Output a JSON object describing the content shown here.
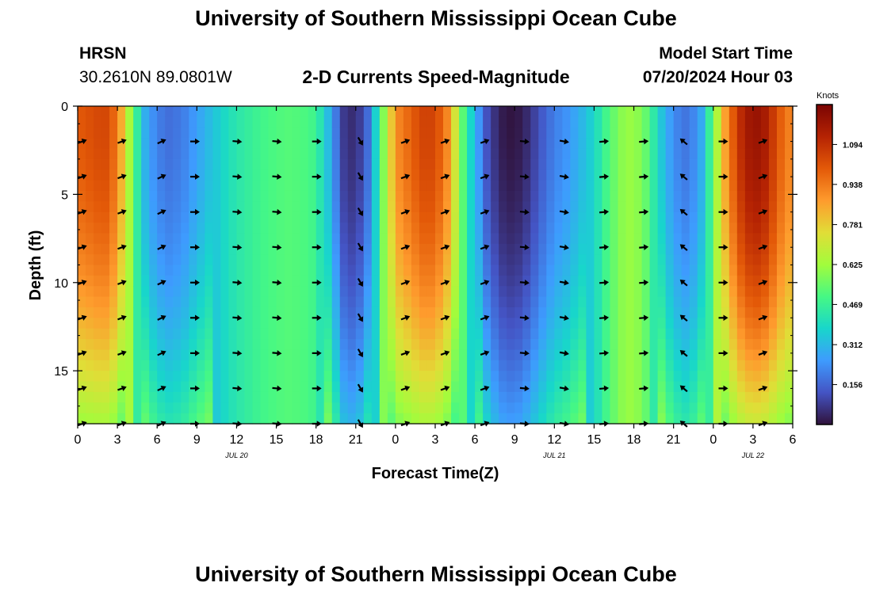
{
  "page": {
    "title_top": "University of Southern Mississippi Ocean Cube",
    "title_bottom": "University of Southern Mississippi Ocean Cube",
    "station_id": "HRSN",
    "station_coords": "30.2610N  89.0801W",
    "chart_title": "2-D Currents Speed-Magnitude",
    "model_start_label": "Model Start Time",
    "model_start_value": "07/20/2024 Hour 03"
  },
  "chart_data": {
    "type": "heatmap",
    "title": "2-D Currents Speed-Magnitude",
    "xlabel": "Forecast Time(Z)",
    "ylabel": "Depth (ft)",
    "xlim": [
      0,
      54
    ],
    "ylim": [
      18,
      0
    ],
    "x_ticks": [
      0,
      3,
      6,
      9,
      12,
      15,
      18,
      21,
      24,
      27,
      30,
      33,
      36,
      39,
      42,
      45,
      48,
      51,
      54
    ],
    "x_tick_labels": [
      "0",
      "3",
      "6",
      "9",
      "12",
      "15",
      "18",
      "21",
      "0",
      "3",
      "6",
      "9",
      "12",
      "15",
      "18",
      "21",
      "0",
      "3",
      "6"
    ],
    "y_ticks": [
      0,
      5,
      10,
      15
    ],
    "y_tick_labels": [
      "0",
      "5",
      "10",
      "15"
    ],
    "date_labels": [
      {
        "text": "JUL 20",
        "x": 12
      },
      {
        "text": "JUL 21",
        "x": 36
      },
      {
        "text": "JUL 22",
        "x": 51
      }
    ],
    "colorbar": {
      "label": "Knots",
      "min": 0,
      "max": 1.25,
      "ticks": [
        1.094,
        0.938,
        0.781,
        0.625,
        0.469,
        0.312,
        0.156
      ],
      "tick_labels": [
        "1.094",
        "0.938",
        "0.781",
        "0.625",
        "0.469",
        "0.312",
        "0.156"
      ]
    },
    "speed_profile_surface": [
      {
        "t": 0,
        "v": 1.0
      },
      {
        "t": 2,
        "v": 1.05
      },
      {
        "t": 3,
        "v": 0.95
      },
      {
        "t": 4,
        "v": 0.6
      },
      {
        "t": 5,
        "v": 0.3
      },
      {
        "t": 6,
        "v": 0.2
      },
      {
        "t": 7,
        "v": 0.17
      },
      {
        "t": 8,
        "v": 0.2
      },
      {
        "t": 9,
        "v": 0.26
      },
      {
        "t": 10,
        "v": 0.32
      },
      {
        "t": 11,
        "v": 0.38
      },
      {
        "t": 12,
        "v": 0.43
      },
      {
        "t": 13,
        "v": 0.46
      },
      {
        "t": 14,
        "v": 0.49
      },
      {
        "t": 15,
        "v": 0.51
      },
      {
        "t": 16,
        "v": 0.52
      },
      {
        "t": 17,
        "v": 0.51
      },
      {
        "t": 18,
        "v": 0.48
      },
      {
        "t": 19,
        "v": 0.3
      },
      {
        "t": 20,
        "v": 0.08
      },
      {
        "t": 21,
        "v": 0.04
      },
      {
        "t": 22,
        "v": 0.18
      },
      {
        "t": 23,
        "v": 0.55
      },
      {
        "t": 24,
        "v": 0.9
      },
      {
        "t": 26,
        "v": 1.05
      },
      {
        "t": 27,
        "v": 1.05
      },
      {
        "t": 28,
        "v": 0.9
      },
      {
        "t": 29,
        "v": 0.55
      },
      {
        "t": 30,
        "v": 0.3
      },
      {
        "t": 31,
        "v": 0.1
      },
      {
        "t": 32,
        "v": 0.02
      },
      {
        "t": 33,
        "v": 0.0
      },
      {
        "t": 34,
        "v": 0.05
      },
      {
        "t": 35,
        "v": 0.13
      },
      {
        "t": 36,
        "v": 0.2
      },
      {
        "t": 37,
        "v": 0.24
      },
      {
        "t": 38,
        "v": 0.3
      },
      {
        "t": 39,
        "v": 0.38
      },
      {
        "t": 40,
        "v": 0.5
      },
      {
        "t": 41,
        "v": 0.59
      },
      {
        "t": 42,
        "v": 0.62
      },
      {
        "t": 43,
        "v": 0.53
      },
      {
        "t": 44,
        "v": 0.35
      },
      {
        "t": 45,
        "v": 0.22
      },
      {
        "t": 46,
        "v": 0.18
      },
      {
        "t": 47,
        "v": 0.25
      },
      {
        "t": 48,
        "v": 0.55
      },
      {
        "t": 49,
        "v": 0.9
      },
      {
        "t": 50,
        "v": 1.1
      },
      {
        "t": 51,
        "v": 1.2
      },
      {
        "t": 52,
        "v": 1.15
      },
      {
        "t": 53,
        "v": 1.0
      },
      {
        "t": 54,
        "v": 0.9
      }
    ],
    "arrow_times": [
      0,
      3,
      6,
      8.5,
      11.7,
      14.7,
      17.7,
      21,
      24.4,
      27.4,
      30.4,
      33.4,
      36.4,
      39.4,
      42.4,
      45.4,
      48.4,
      51.4
    ],
    "arrow_depths": [
      2,
      4,
      6,
      8,
      10,
      12,
      14,
      16,
      18
    ],
    "arrow_directions_deg": [
      20,
      20,
      25,
      0,
      -5,
      -5,
      0,
      -60,
      20,
      20,
      20,
      -5,
      -10,
      5,
      5,
      140,
      0,
      20
    ]
  }
}
